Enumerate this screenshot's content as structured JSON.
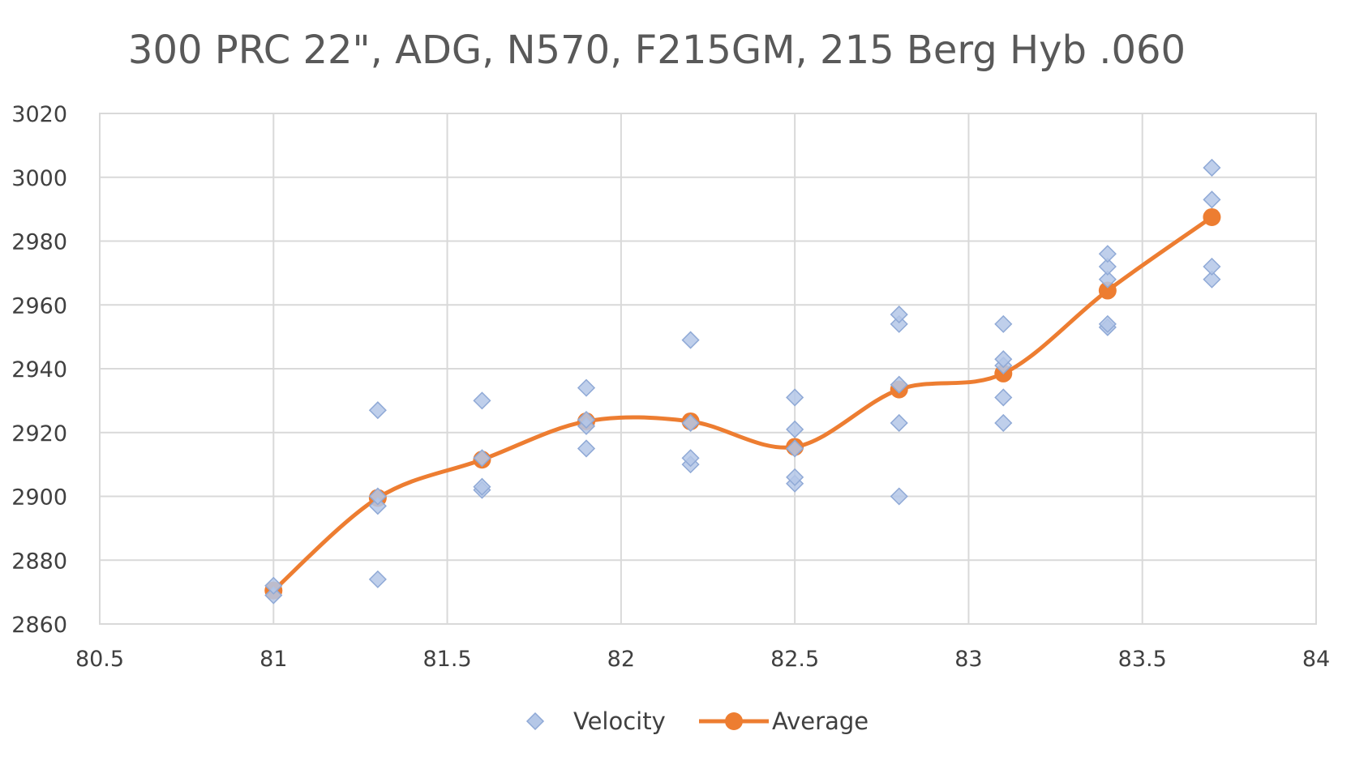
{
  "chart_data": {
    "type": "scatter",
    "title": "300 PRC 22\", ADG, N570, F215GM, 215 Berg Hyb .060",
    "xlabel": "",
    "ylabel": "",
    "xlim": [
      80.5,
      84
    ],
    "ylim": [
      2860,
      3020
    ],
    "x_ticks": [
      "80.5",
      "81",
      "81.5",
      "82",
      "82.5",
      "83",
      "83.5",
      "84"
    ],
    "y_ticks": [
      "2860",
      "2880",
      "2900",
      "2920",
      "2940",
      "2960",
      "2980",
      "3000",
      "3020"
    ],
    "grid": true,
    "legend_position": "bottom",
    "series": [
      {
        "name": "Velocity",
        "kind": "scatter",
        "marker": "diamond",
        "color": "#b4c7e7",
        "points": [
          {
            "x": 81.0,
            "y": 2869
          },
          {
            "x": 81.0,
            "y": 2872
          },
          {
            "x": 81.3,
            "y": 2874
          },
          {
            "x": 81.3,
            "y": 2897
          },
          {
            "x": 81.3,
            "y": 2900
          },
          {
            "x": 81.3,
            "y": 2927
          },
          {
            "x": 81.6,
            "y": 2902
          },
          {
            "x": 81.6,
            "y": 2903
          },
          {
            "x": 81.6,
            "y": 2912
          },
          {
            "x": 81.6,
            "y": 2930
          },
          {
            "x": 81.9,
            "y": 2915
          },
          {
            "x": 81.9,
            "y": 2922
          },
          {
            "x": 81.9,
            "y": 2924
          },
          {
            "x": 81.9,
            "y": 2934
          },
          {
            "x": 82.2,
            "y": 2910
          },
          {
            "x": 82.2,
            "y": 2912
          },
          {
            "x": 82.2,
            "y": 2923
          },
          {
            "x": 82.2,
            "y": 2949
          },
          {
            "x": 82.5,
            "y": 2904
          },
          {
            "x": 82.5,
            "y": 2906
          },
          {
            "x": 82.5,
            "y": 2915
          },
          {
            "x": 82.5,
            "y": 2921
          },
          {
            "x": 82.5,
            "y": 2931
          },
          {
            "x": 82.8,
            "y": 2900
          },
          {
            "x": 82.8,
            "y": 2923
          },
          {
            "x": 82.8,
            "y": 2935
          },
          {
            "x": 82.8,
            "y": 2954
          },
          {
            "x": 82.8,
            "y": 2957
          },
          {
            "x": 83.1,
            "y": 2923
          },
          {
            "x": 83.1,
            "y": 2931
          },
          {
            "x": 83.1,
            "y": 2941
          },
          {
            "x": 83.1,
            "y": 2943
          },
          {
            "x": 83.1,
            "y": 2954
          },
          {
            "x": 83.4,
            "y": 2953
          },
          {
            "x": 83.4,
            "y": 2954
          },
          {
            "x": 83.4,
            "y": 2968
          },
          {
            "x": 83.4,
            "y": 2972
          },
          {
            "x": 83.4,
            "y": 2976
          },
          {
            "x": 83.7,
            "y": 2968
          },
          {
            "x": 83.7,
            "y": 2972
          },
          {
            "x": 83.7,
            "y": 2993
          },
          {
            "x": 83.7,
            "y": 3003
          }
        ]
      },
      {
        "name": "Average",
        "kind": "line",
        "smooth": true,
        "marker": "circle",
        "color": "#ed7d31",
        "points": [
          {
            "x": 81.0,
            "y": 2870.5
          },
          {
            "x": 81.3,
            "y": 2899.5
          },
          {
            "x": 81.6,
            "y": 2911.5
          },
          {
            "x": 81.9,
            "y": 2923.5
          },
          {
            "x": 82.2,
            "y": 2923.5
          },
          {
            "x": 82.5,
            "y": 2915.5
          },
          {
            "x": 82.8,
            "y": 2933.5
          },
          {
            "x": 83.1,
            "y": 2938.5
          },
          {
            "x": 83.4,
            "y": 2964.5
          },
          {
            "x": 83.7,
            "y": 2987.5
          }
        ]
      }
    ]
  }
}
